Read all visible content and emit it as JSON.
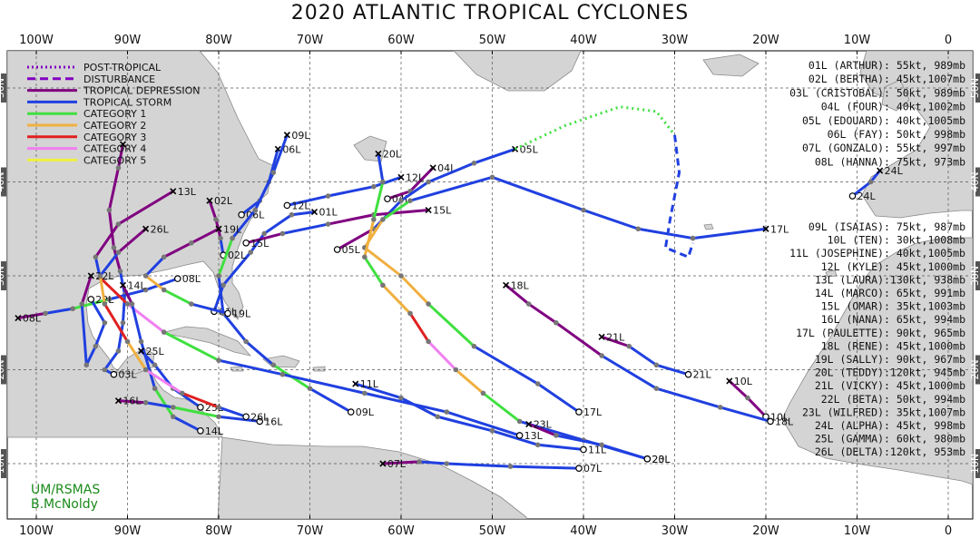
{
  "title": "2020 ATLANTIC TROPICAL CYCLONES",
  "credit": [
    "UM/RSMAS",
    "B.McNoldy"
  ],
  "lon_labels": [
    "100W",
    "90W",
    "80W",
    "70W",
    "60W",
    "50W",
    "40W",
    "30W",
    "20W",
    "10W",
    "0"
  ],
  "lat_labels": [
    "50N",
    "40N",
    "30N",
    "20N",
    "10N"
  ],
  "legend": [
    {
      "label": "POST-TROPICAL",
      "color": "#8000c0",
      "style": "dot"
    },
    {
      "label": "DISTURBANCE",
      "color": "#8000c0",
      "style": "dash"
    },
    {
      "label": "TROPICAL DEPRESSION",
      "color": "#800080",
      "style": "solid"
    },
    {
      "label": "TROPICAL STORM",
      "color": "#2040e0",
      "style": "solid"
    },
    {
      "label": "CATEGORY 1",
      "color": "#40e040",
      "style": "solid"
    },
    {
      "label": "CATEGORY 2",
      "color": "#f0b040",
      "style": "solid"
    },
    {
      "label": "CATEGORY 3",
      "color": "#e02020",
      "style": "solid"
    },
    {
      "label": "CATEGORY 4",
      "color": "#f080f0",
      "style": "solid"
    },
    {
      "label": "CATEGORY 5",
      "color": "#f0f040",
      "style": "solid"
    }
  ],
  "summary_top": [
    "01L (ARTHUR): 55kt, 989mb",
    "02L (BERTHA): 45kt,1007mb",
    "03L (CRISTOBAL): 50kt, 989mb",
    "04L (FOUR): 40kt,1002mb",
    "05L (EDOUARD): 40kt,1005mb",
    "06L (FAY): 50kt, 998mb",
    "07L (GONZALO): 55kt, 997mb",
    "08L (HANNA): 75kt, 973mb"
  ],
  "summary_bottom": [
    "09L (ISAIAS): 75kt, 987mb",
    "10L (TEN): 30kt,1008mb",
    "11L (JOSEPHINE): 40kt,1005mb",
    "12L (KYLE): 45kt,1000mb",
    "13L (LAURA):130kt, 938mb",
    "14L (MARCO): 65kt, 991mb",
    "15L (OMAR): 35kt,1003mb",
    "16L (NANA): 65kt, 994mb",
    "17L (PAULETTE): 90kt, 965mb",
    "18L (RENE): 45kt,1000mb",
    "19L (SALLY): 90kt, 967mb",
    "20L (TEDDY):120kt, 945mb",
    "21L (VICKY): 45kt,1000mb",
    "22L (BETA): 50kt, 994mb",
    "23L (WILFRED): 35kt,1007mb",
    "24L (ALPHA): 45kt, 998mb",
    "25L (GAMMA): 60kt, 980mb",
    "26L (DELTA):120kt, 953mb"
  ],
  "storms": [
    {
      "id": "01L",
      "start": "01L",
      "end": "01L",
      "track": [
        [
          -80.5,
          26.2,
          "TD"
        ],
        [
          -79.5,
          29,
          "TS"
        ],
        [
          -76.5,
          32.5,
          "TS"
        ],
        [
          -75,
          34.5,
          "TS"
        ],
        [
          -72,
          36.5,
          "TS"
        ],
        [
          -69.5,
          36.8,
          "TS"
        ]
      ]
    },
    {
      "id": "02L",
      "start": "02L",
      "end": "02L",
      "track": [
        [
          -79.5,
          32.2,
          "TS"
        ],
        [
          -79.8,
          34,
          "TS"
        ],
        [
          -80.3,
          36,
          "TD"
        ],
        [
          -81,
          38,
          "TD"
        ]
      ]
    },
    {
      "id": "03L",
      "start": "03L",
      "end": "",
      "track": [
        [
          -91.5,
          19.5,
          "TD"
        ],
        [
          -92.5,
          20,
          "TS"
        ],
        [
          -91,
          22,
          "TS"
        ],
        [
          -90.5,
          25,
          "TS"
        ],
        [
          -90.3,
          28,
          "TS"
        ],
        [
          -90.8,
          30.5,
          "TS"
        ],
        [
          -91.5,
          33,
          "TD"
        ],
        [
          -92,
          37,
          "TD"
        ],
        [
          -91,
          41.5,
          "TD"
        ],
        [
          -90.5,
          44,
          "TD"
        ]
      ]
    },
    {
      "id": "04L",
      "start": "04L",
      "end": "04L",
      "track": [
        [
          -61.5,
          38.2,
          "TD"
        ],
        [
          -59,
          39,
          "TD"
        ],
        [
          -56.5,
          41.5,
          "TD"
        ]
      ]
    },
    {
      "id": "05L",
      "start": "05L",
      "end": "05L",
      "track": [
        [
          -67,
          32.8,
          "TD"
        ],
        [
          -63,
          35,
          "TD"
        ],
        [
          -60,
          38,
          "TS"
        ],
        [
          -57,
          40,
          "TS"
        ],
        [
          -52,
          42,
          "TS"
        ],
        [
          -47.5,
          43.5,
          "TS"
        ]
      ]
    },
    {
      "id": "06L",
      "start": "06L",
      "end": "06L",
      "track": [
        [
          -77.5,
          36.5,
          "TS"
        ],
        [
          -75.5,
          38,
          "TS"
        ],
        [
          -74.5,
          40,
          "TS"
        ],
        [
          -73.5,
          43.5,
          "TS"
        ]
      ]
    },
    {
      "id": "07L",
      "start": "07L",
      "end": "07L",
      "track": [
        [
          -40.5,
          9.5,
          "TD"
        ],
        [
          -48,
          9.7,
          "TS"
        ],
        [
          -55,
          10,
          "TS"
        ],
        [
          -58,
          10.2,
          "TS"
        ],
        [
          -62,
          10,
          "TD"
        ]
      ]
    },
    {
      "id": "08L",
      "start": "08L",
      "end": "08L",
      "track": [
        [
          -84.5,
          29.7,
          "TD"
        ],
        [
          -88,
          28.5,
          "TS"
        ],
        [
          -92,
          27.5,
          "TS"
        ],
        [
          -96,
          26.5,
          "C1"
        ],
        [
          -99,
          26,
          "TS"
        ],
        [
          -102,
          25.5,
          "TD"
        ]
      ]
    },
    {
      "id": "09L",
      "start": "09L",
      "end": "09L",
      "track": [
        [
          -65.5,
          15.5,
          "TS"
        ],
        [
          -70,
          18,
          "TS"
        ],
        [
          -74,
          20.5,
          "C1"
        ],
        [
          -77,
          23,
          "TS"
        ],
        [
          -79.5,
          26,
          "TS"
        ],
        [
          -80,
          30,
          "TS"
        ],
        [
          -78.5,
          34,
          "C1"
        ],
        [
          -76,
          37,
          "TS"
        ],
        [
          -74,
          41,
          "TS"
        ],
        [
          -72.5,
          45,
          "TS"
        ]
      ]
    },
    {
      "id": "10L",
      "start": "10L",
      "end": "10L",
      "track": [
        [
          -20,
          15,
          "TD"
        ],
        [
          -22,
          17,
          "TD"
        ],
        [
          -24,
          18.8,
          "TD"
        ]
      ]
    },
    {
      "id": "11L",
      "start": "11L",
      "end": "11L",
      "track": [
        [
          -40,
          11.5,
          "TS"
        ],
        [
          -45,
          12,
          "TS"
        ],
        [
          -50,
          13.5,
          "TS"
        ],
        [
          -56,
          15,
          "TS"
        ],
        [
          -60,
          17,
          "TS"
        ],
        [
          -65,
          18.5,
          "TS"
        ]
      ]
    },
    {
      "id": "12L",
      "start": "12L",
      "end": "12L",
      "track": [
        [
          -72.5,
          37.5,
          "TS"
        ],
        [
          -68,
          38.5,
          "TS"
        ],
        [
          -63,
          39.5,
          "TS"
        ],
        [
          -60,
          40.5,
          "TS"
        ]
      ]
    },
    {
      "id": "13L",
      "start": "13L",
      "end": "13L",
      "track": [
        [
          -47,
          13,
          "TD"
        ],
        [
          -55,
          15.5,
          "TS"
        ],
        [
          -64,
          17.5,
          "TS"
        ],
        [
          -73,
          19.5,
          "TS"
        ],
        [
          -80,
          21,
          "TS"
        ],
        [
          -86,
          24,
          "C1"
        ],
        [
          -90,
          27,
          "C4"
        ],
        [
          -93,
          29.8,
          "C3"
        ],
        [
          -93.5,
          32,
          "TS"
        ],
        [
          -91,
          35.5,
          "TD"
        ],
        [
          -85,
          39,
          "TD"
        ]
      ]
    },
    {
      "id": "14L",
      "start": "14L",
      "end": "14L",
      "track": [
        [
          -82,
          13.5,
          "TD"
        ],
        [
          -85,
          15,
          "TS"
        ],
        [
          -87,
          18,
          "C1"
        ],
        [
          -88.5,
          23,
          "TS"
        ],
        [
          -89.5,
          27,
          "TS"
        ],
        [
          -90.5,
          29,
          "TD"
        ]
      ]
    },
    {
      "id": "15L",
      "start": "15L",
      "end": "15L",
      "track": [
        [
          -77,
          33.5,
          "TD"
        ],
        [
          -73,
          34.5,
          "TD"
        ],
        [
          -68,
          35.5,
          "TS"
        ],
        [
          -63,
          36.5,
          "TD"
        ],
        [
          -57,
          37,
          "TD"
        ]
      ]
    },
    {
      "id": "16L",
      "start": "16L",
      "end": "16L",
      "track": [
        [
          -75.5,
          14.5,
          "TD"
        ],
        [
          -80,
          15,
          "TS"
        ],
        [
          -85,
          16,
          "C1"
        ],
        [
          -88,
          16.5,
          "TS"
        ],
        [
          -91,
          16.7,
          "TD"
        ]
      ]
    },
    {
      "id": "17L",
      "start": "17L",
      "end": "17L",
      "track": [
        [
          -40.5,
          15.5,
          "TD"
        ],
        [
          -45,
          18.5,
          "TS"
        ],
        [
          -52,
          22.5,
          "TS"
        ],
        [
          -57,
          27,
          "C1"
        ],
        [
          -60,
          30,
          "C2"
        ],
        [
          -64,
          33,
          "C2"
        ],
        [
          -62,
          36,
          "C2"
        ],
        [
          -59,
          38,
          "C1"
        ],
        [
          -50,
          40.5,
          "TS"
        ],
        [
          -40,
          37,
          "TS"
        ],
        [
          -34,
          35,
          "TS"
        ],
        [
          -28,
          34,
          "TS"
        ],
        [
          -20,
          35,
          "TS"
        ]
      ]
    },
    {
      "id": "18L",
      "start": "18L",
      "end": "18L",
      "track": [
        [
          -19.5,
          14.5,
          "TD"
        ],
        [
          -25,
          16,
          "TS"
        ],
        [
          -32,
          18,
          "TS"
        ],
        [
          -38,
          21.5,
          "TS"
        ],
        [
          -43,
          25,
          "TD"
        ],
        [
          -46,
          27,
          "TD"
        ],
        [
          -48.5,
          29,
          "TD"
        ]
      ]
    },
    {
      "id": "19L",
      "start": "19L",
      "end": "19L",
      "track": [
        [
          -79,
          26,
          "TS"
        ],
        [
          -83,
          27,
          "TS"
        ],
        [
          -86,
          28.5,
          "C1"
        ],
        [
          -88,
          30,
          "C2"
        ],
        [
          -86,
          32,
          "TS"
        ],
        [
          -83,
          33.5,
          "TD"
        ],
        [
          -80,
          35,
          "TD"
        ]
      ]
    },
    {
      "id": "20L",
      "start": "20L",
      "end": "20L",
      "track": [
        [
          -33,
          10.5,
          "TD"
        ],
        [
          -40,
          12.5,
          "TS"
        ],
        [
          -47,
          14.5,
          "TS"
        ],
        [
          -51,
          17.5,
          "C1"
        ],
        [
          -54,
          20,
          "C2"
        ],
        [
          -57,
          23,
          "C4"
        ],
        [
          -59,
          26,
          "C3"
        ],
        [
          -62,
          29,
          "C2"
        ],
        [
          -64,
          32,
          "C1"
        ],
        [
          -63,
          36,
          "C2"
        ],
        [
          -62,
          40,
          "C1"
        ],
        [
          -62.5,
          43,
          "TS"
        ]
      ]
    },
    {
      "id": "21L",
      "start": "21L",
      "end": "21L",
      "track": [
        [
          -28.5,
          19.5,
          "TS"
        ],
        [
          -32,
          20.5,
          "TS"
        ],
        [
          -35,
          22.5,
          "TS"
        ],
        [
          -38,
          23.5,
          "TD"
        ]
      ]
    },
    {
      "id": "22L",
      "start": "22L",
      "end": "22L",
      "track": [
        [
          -94,
          27.5,
          "TD"
        ],
        [
          -92.5,
          25,
          "TS"
        ],
        [
          -93.5,
          22.5,
          "TS"
        ],
        [
          -94.5,
          20.5,
          "TS"
        ],
        [
          -95,
          27,
          "TS"
        ],
        [
          -94,
          30,
          "TD"
        ]
      ]
    },
    {
      "id": "23L",
      "start": "23L",
      "end": "23L",
      "track": [
        [
          -33,
          10.5,
          "TD"
        ],
        [
          -38,
          12,
          "TS"
        ],
        [
          -43,
          13,
          "TS"
        ],
        [
          -46,
          14.2,
          "TD"
        ]
      ]
    },
    {
      "id": "24L",
      "start": "24L",
      "end": "24L",
      "track": [
        [
          -10.5,
          38.5,
          "TS"
        ],
        [
          -8.5,
          40,
          "TS"
        ],
        [
          -7.5,
          41.2,
          "TS"
        ]
      ]
    },
    {
      "id": "25L",
      "start": "25L",
      "end": "25L",
      "track": [
        [
          -82,
          16,
          "TD"
        ],
        [
          -85,
          18,
          "TS"
        ],
        [
          -87,
          20.5,
          "TS"
        ],
        [
          -88.5,
          22,
          "TS"
        ]
      ]
    },
    {
      "id": "26L",
      "start": "26L",
      "end": "26L",
      "track": [
        [
          -77,
          15,
          "TD"
        ],
        [
          -80,
          16,
          "TS"
        ],
        [
          -84,
          17.5,
          "C3"
        ],
        [
          -88,
          20,
          "C4"
        ],
        [
          -90,
          23,
          "C2"
        ],
        [
          -92.5,
          27,
          "C3"
        ],
        [
          -93,
          30,
          "C2"
        ],
        [
          -91,
          32.5,
          "TS"
        ],
        [
          -88,
          35,
          "TD"
        ]
      ]
    }
  ],
  "post_tropical": [
    [
      -47.5,
      43.5
    ],
    [
      -42,
      46
    ],
    [
      -36,
      48
    ],
    [
      -32,
      47.5
    ],
    [
      -30,
      45
    ]
  ],
  "disturbance": [
    [
      -30,
      45
    ],
    [
      -29.5,
      41
    ],
    [
      -30.5,
      36
    ],
    [
      -31,
      33
    ],
    [
      -28.5,
      32
    ],
    [
      -28,
      33.5
    ]
  ]
}
